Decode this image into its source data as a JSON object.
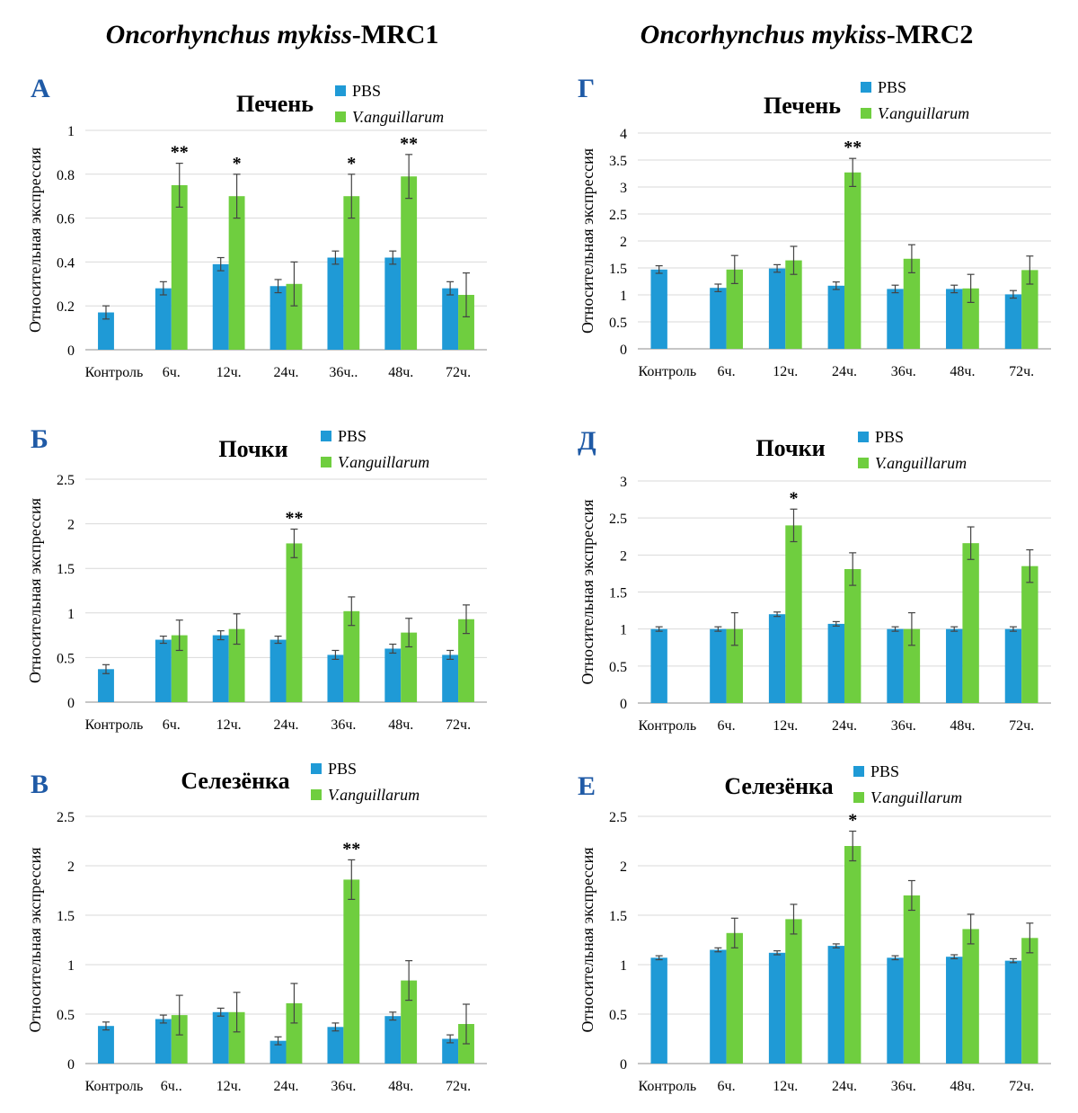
{
  "columns": [
    {
      "title_species": "Oncorhynchus mykiss",
      "title_suffix": "-MRC1"
    },
    {
      "title_species": "Oncorhynchus mykiss",
      "title_suffix": "-MRC2"
    }
  ],
  "colors": {
    "pbs": "#1f9ad6",
    "vang": "#6fce3f",
    "grid": "#d9d9d9",
    "letter": "#1f5aa6",
    "axis": "#8c8c8c"
  },
  "chart_data": [
    {
      "type": "bar",
      "panel": "А",
      "title": "Печень",
      "categories": [
        "Контроль",
        "6ч.",
        "12ч.",
        "24ч.",
        "36ч..",
        "48ч.",
        "72ч."
      ],
      "series": [
        {
          "name": "PBS",
          "values": [
            0.17,
            0.28,
            0.39,
            0.29,
            0.42,
            0.42,
            0.28
          ],
          "errors": [
            0.03,
            0.03,
            0.03,
            0.03,
            0.03,
            0.03,
            0.03
          ]
        },
        {
          "name": "V.anguillarum",
          "values": [
            null,
            0.75,
            0.7,
            0.3,
            0.7,
            0.79,
            0.25
          ],
          "errors": [
            null,
            0.1,
            0.1,
            0.1,
            0.1,
            0.1,
            0.1
          ]
        }
      ],
      "significance": [
        "",
        "**",
        "*",
        "",
        "*",
        "**",
        ""
      ],
      "ylabel": "Относительная экспрессия",
      "ylim": [
        0,
        1
      ],
      "ytick_step": 0.2,
      "ytick_labels": [
        "0",
        "0.2",
        "0.4",
        "0.6",
        "0.8",
        "1"
      ],
      "grid": true,
      "legend": "top-right"
    },
    {
      "type": "bar",
      "panel": "Б",
      "title": "Почки",
      "categories": [
        "Контроль",
        "6ч.",
        "12ч.",
        "24ч.",
        "36ч.",
        "48ч.",
        "72ч."
      ],
      "series": [
        {
          "name": "PBS",
          "values": [
            0.37,
            0.7,
            0.75,
            0.7,
            0.53,
            0.6,
            0.53
          ],
          "errors": [
            0.05,
            0.04,
            0.05,
            0.04,
            0.05,
            0.05,
            0.05
          ]
        },
        {
          "name": "V.anguillarum",
          "values": [
            null,
            0.75,
            0.82,
            1.78,
            1.02,
            0.78,
            0.93
          ],
          "errors": [
            null,
            0.17,
            0.17,
            0.16,
            0.16,
            0.16,
            0.16
          ]
        }
      ],
      "significance": [
        "",
        "",
        "",
        "**",
        "",
        "",
        ""
      ],
      "ylabel": "Относительная экспрессия",
      "ylim": [
        0,
        2.5
      ],
      "ytick_step": 0.5,
      "ytick_labels": [
        "0",
        "0.5",
        "1",
        "1.5",
        "2",
        "2.5"
      ],
      "grid": true,
      "legend": "top-right"
    },
    {
      "type": "bar",
      "panel": "В",
      "title": "Селезёнка",
      "categories": [
        "Контроль",
        "6ч..",
        "12ч.",
        "24ч.",
        "36ч.",
        "48ч.",
        "72ч."
      ],
      "series": [
        {
          "name": "PBS",
          "values": [
            0.38,
            0.45,
            0.52,
            0.23,
            0.37,
            0.48,
            0.25
          ],
          "errors": [
            0.04,
            0.04,
            0.04,
            0.04,
            0.04,
            0.04,
            0.04
          ]
        },
        {
          "name": "V.anguillarum",
          "values": [
            null,
            0.49,
            0.52,
            0.61,
            1.86,
            0.84,
            0.4
          ],
          "errors": [
            null,
            0.2,
            0.2,
            0.2,
            0.2,
            0.2,
            0.2
          ]
        }
      ],
      "significance": [
        "",
        "",
        "",
        "",
        "**",
        "",
        ""
      ],
      "ylabel": "Относительная экспрессия",
      "ylim": [
        0,
        2.5
      ],
      "ytick_step": 0.5,
      "ytick_labels": [
        "0",
        "0.5",
        "1",
        "1.5",
        "2",
        "2.5"
      ],
      "grid": true,
      "legend": "top-right"
    },
    {
      "type": "bar",
      "panel": "Г",
      "title": "Печень",
      "categories": [
        "Контроль",
        "6ч.",
        "12ч.",
        "24ч.",
        "36ч.",
        "48ч.",
        "72ч."
      ],
      "series": [
        {
          "name": "PBS",
          "values": [
            1.47,
            1.13,
            1.49,
            1.17,
            1.11,
            1.11,
            1.01
          ],
          "errors": [
            0.07,
            0.07,
            0.07,
            0.07,
            0.07,
            0.07,
            0.07
          ]
        },
        {
          "name": "V.anguillarum",
          "values": [
            null,
            1.47,
            1.64,
            3.27,
            1.67,
            1.12,
            1.46
          ],
          "errors": [
            null,
            0.26,
            0.26,
            0.26,
            0.26,
            0.26,
            0.26
          ]
        }
      ],
      "significance": [
        "",
        "",
        "",
        "**",
        "",
        "",
        ""
      ],
      "ylabel": "Относительная экспрессия",
      "ylim": [
        0,
        4
      ],
      "ytick_step": 0.5,
      "ytick_labels": [
        "0",
        "0.5",
        "1",
        "1.5",
        "2",
        "2.5",
        "3",
        "3.5",
        "4"
      ],
      "grid": true,
      "legend": "top-right"
    },
    {
      "type": "bar",
      "panel": "Д",
      "title": "Почки",
      "categories": [
        "Контроль",
        "6ч.",
        "12ч.",
        "24ч.",
        "36ч.",
        "48ч.",
        "72ч."
      ],
      "series": [
        {
          "name": "PBS",
          "values": [
            1.0,
            1.0,
            1.2,
            1.07,
            1.0,
            1.0,
            1.0
          ],
          "errors": [
            0.03,
            0.03,
            0.03,
            0.03,
            0.03,
            0.03,
            0.03
          ]
        },
        {
          "name": "V.anguillarum",
          "values": [
            null,
            1.0,
            2.4,
            1.81,
            1.0,
            2.16,
            1.85
          ],
          "errors": [
            null,
            0.22,
            0.22,
            0.22,
            0.22,
            0.22,
            0.22
          ]
        }
      ],
      "significance": [
        "",
        "",
        "*",
        "",
        "",
        "",
        ""
      ],
      "ylabel": "Относительная экспрессия",
      "ylim": [
        0,
        3
      ],
      "ytick_step": 0.5,
      "ytick_labels": [
        "0",
        "0.5",
        "1",
        "1.5",
        "2",
        "2.5",
        "3"
      ],
      "grid": true,
      "legend": "top-right"
    },
    {
      "type": "bar",
      "panel": "Е",
      "title": "Селезёнка",
      "categories": [
        "Контроль",
        "6ч.",
        "12ч.",
        "24ч.",
        "36ч.",
        "48ч.",
        "72ч."
      ],
      "series": [
        {
          "name": "PBS",
          "values": [
            1.07,
            1.15,
            1.12,
            1.19,
            1.07,
            1.08,
            1.04
          ],
          "errors": [
            0.02,
            0.02,
            0.02,
            0.02,
            0.02,
            0.02,
            0.02
          ]
        },
        {
          "name": "V.anguillarum",
          "values": [
            null,
            1.32,
            1.46,
            2.2,
            1.7,
            1.36,
            1.27
          ],
          "errors": [
            null,
            0.15,
            0.15,
            0.15,
            0.15,
            0.15,
            0.15
          ]
        }
      ],
      "significance": [
        "",
        "",
        "",
        "*",
        "",
        "",
        ""
      ],
      "ylabel": "Относительная экспрессия",
      "ylim": [
        0,
        2.5
      ],
      "ytick_step": 0.5,
      "ytick_labels": [
        "0",
        "0.5",
        "1",
        "1.5",
        "2",
        "2.5"
      ],
      "grid": true,
      "legend": "top-right"
    }
  ]
}
